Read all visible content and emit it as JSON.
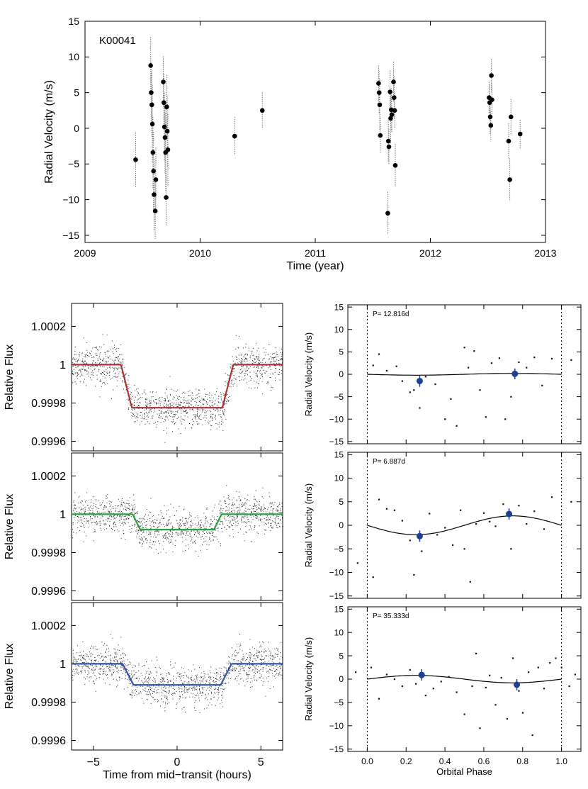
{
  "chart_data": [
    {
      "type": "scatter",
      "id": "rv_time",
      "label": "K00041",
      "xlabel": "Time (year)",
      "ylabel": "Radial Velocity (m/s)",
      "xlim": [
        2009,
        2013
      ],
      "ylim": [
        -16,
        15
      ],
      "xticks": [
        2009,
        2010,
        2011,
        2012,
        2013
      ],
      "xtick_labels": [
        "2009",
        "2010",
        "2011",
        "2012",
        "2013"
      ],
      "yticks": [
        -15,
        -10,
        -5,
        0,
        5,
        10,
        15
      ],
      "ytick_labels": [
        "−15",
        "−10",
        "−5",
        "0",
        "5",
        "10",
        "15"
      ],
      "points": [
        {
          "x": 2009.44,
          "y": -4.4,
          "err": 3.8
        },
        {
          "x": 2009.57,
          "y": 8.8,
          "err": 4.0
        },
        {
          "x": 2009.575,
          "y": 5.0,
          "err": 4.2
        },
        {
          "x": 2009.58,
          "y": 3.3,
          "err": 4.5
        },
        {
          "x": 2009.585,
          "y": 0.6,
          "err": 5.5
        },
        {
          "x": 2009.59,
          "y": -3.4,
          "err": 5.0
        },
        {
          "x": 2009.595,
          "y": -6.0,
          "err": 5.5
        },
        {
          "x": 2009.6,
          "y": -9.3,
          "err": 5.0
        },
        {
          "x": 2009.61,
          "y": -11.6,
          "err": 4.0
        },
        {
          "x": 2009.615,
          "y": -7.2,
          "err": 4.5
        },
        {
          "x": 2009.68,
          "y": 6.5,
          "err": 3.6
        },
        {
          "x": 2009.685,
          "y": 3.6,
          "err": 4.0
        },
        {
          "x": 2009.69,
          "y": 0.2,
          "err": 4.8
        },
        {
          "x": 2009.695,
          "y": -1.3,
          "err": 5.0
        },
        {
          "x": 2009.7,
          "y": -3.4,
          "err": 5.5
        },
        {
          "x": 2009.705,
          "y": -9.7,
          "err": 4.0
        },
        {
          "x": 2009.71,
          "y": 3.0,
          "err": 4.5
        },
        {
          "x": 2009.715,
          "y": -0.4,
          "err": 5.0
        },
        {
          "x": 2009.72,
          "y": -3.0,
          "err": 5.0
        },
        {
          "x": 2010.3,
          "y": -1.1,
          "err": 2.7
        },
        {
          "x": 2010.54,
          "y": 2.5,
          "err": 2.5
        },
        {
          "x": 2011.55,
          "y": 6.3,
          "err": 2.5
        },
        {
          "x": 2011.555,
          "y": 5.0,
          "err": 3.0
        },
        {
          "x": 2011.56,
          "y": 3.3,
          "err": 3.5
        },
        {
          "x": 2011.565,
          "y": -1.0,
          "err": 2.5
        },
        {
          "x": 2011.63,
          "y": -11.9,
          "err": 3.0
        },
        {
          "x": 2011.635,
          "y": -1.8,
          "err": 3.0
        },
        {
          "x": 2011.64,
          "y": -2.6,
          "err": 2.5
        },
        {
          "x": 2011.65,
          "y": 5.1,
          "err": 3.0
        },
        {
          "x": 2011.655,
          "y": 1.4,
          "err": 3.5
        },
        {
          "x": 2011.66,
          "y": 2.6,
          "err": 3.0
        },
        {
          "x": 2011.665,
          "y": 1.9,
          "err": 2.5
        },
        {
          "x": 2011.68,
          "y": 6.5,
          "err": 2.8
        },
        {
          "x": 2011.685,
          "y": 4.3,
          "err": 3.0
        },
        {
          "x": 2011.69,
          "y": 2.5,
          "err": 2.5
        },
        {
          "x": 2011.695,
          "y": -5.2,
          "err": 3.0
        },
        {
          "x": 2012.51,
          "y": 4.3,
          "err": 2.2
        },
        {
          "x": 2012.515,
          "y": 3.6,
          "err": 2.5
        },
        {
          "x": 2012.52,
          "y": 1.6,
          "err": 2.5
        },
        {
          "x": 2012.525,
          "y": 0.4,
          "err": 2.0
        },
        {
          "x": 2012.53,
          "y": 7.4,
          "err": 2.3
        },
        {
          "x": 2012.535,
          "y": 4.0,
          "err": 2.0
        },
        {
          "x": 2012.68,
          "y": -1.8,
          "err": 2.5
        },
        {
          "x": 2012.69,
          "y": -7.2,
          "err": 3.0
        },
        {
          "x": 2012.7,
          "y": 1.6,
          "err": 2.5
        },
        {
          "x": 2012.78,
          "y": -0.8,
          "err": 2.0
        }
      ]
    },
    {
      "type": "scatter",
      "id": "transit_1",
      "ylabel": "Relative Flux",
      "xlim": [
        -6.3,
        6.3
      ],
      "ylim": [
        0.99955,
        1.00032
      ],
      "yticks": [
        0.9996,
        0.9998,
        1.0,
        1.0002
      ],
      "ytick_labels": [
        "0.9996",
        "0.9998",
        "1",
        "1.0002"
      ],
      "model": {
        "depth": 0.000225,
        "t_full": 2.7,
        "t_total": 3.35
      },
      "scatter_sigma": 5e-05,
      "line_color": "#a83236"
    },
    {
      "type": "scatter",
      "id": "transit_2",
      "ylabel": "Relative Flux",
      "xlim": [
        -6.3,
        6.3
      ],
      "ylim": [
        0.99955,
        1.00032
      ],
      "yticks": [
        0.9996,
        0.9998,
        1.0,
        1.0002
      ],
      "ytick_labels": [
        "0.9996",
        "0.9998",
        "1",
        "1.0002"
      ],
      "model": {
        "depth": 8e-05,
        "t_full": 2.2,
        "t_total": 2.65
      },
      "scatter_sigma": 5e-05,
      "line_color": "#2ea043"
    },
    {
      "type": "scatter",
      "id": "transit_3",
      "ylabel": "Relative Flux",
      "xlabel": "Time from mid−transit (hours)",
      "xlim": [
        -6.3,
        6.3
      ],
      "ylim": [
        0.99955,
        1.00032
      ],
      "xticks": [
        -5,
        0,
        5
      ],
      "xtick_labels": [
        "−5",
        "0",
        "5"
      ],
      "yticks": [
        0.9996,
        0.9998,
        1.0,
        1.0002
      ],
      "ytick_labels": [
        "0.9996",
        "0.9998",
        "1",
        "1.0002"
      ],
      "model": {
        "depth": 0.00011,
        "t_full": 2.6,
        "t_total": 3.25
      },
      "scatter_sigma": 5e-05,
      "line_color": "#2f54b0"
    },
    {
      "type": "scatter",
      "id": "phase_1",
      "label": "P= 12.816d",
      "ylabel": "Radial Velocity (m/s)",
      "xlim": [
        -0.1,
        1.1
      ],
      "ylim": [
        -15.5,
        15.5
      ],
      "yticks": [
        -15,
        -10,
        -5,
        0,
        5,
        10,
        15
      ],
      "ytick_labels": [
        "−15",
        "−10",
        "−5",
        "0",
        "5",
        "10",
        "15"
      ],
      "curve": {
        "amplitude": 0.2,
        "phase_max": 0.75
      },
      "binned": [
        {
          "x": 0.27,
          "y": -1.5,
          "err": 1.3
        },
        {
          "x": 0.76,
          "y": 0.1,
          "err": 1.2
        }
      ],
      "points": [
        {
          "x": 0.03,
          "y": 2.0
        },
        {
          "x": 0.06,
          "y": 4.5
        },
        {
          "x": 0.1,
          "y": 0.8
        },
        {
          "x": 0.15,
          "y": 1.8
        },
        {
          "x": 0.18,
          "y": -1.5
        },
        {
          "x": 0.22,
          "y": -4.0
        },
        {
          "x": 0.24,
          "y": -3.5
        },
        {
          "x": 0.27,
          "y": -7.5
        },
        {
          "x": 0.3,
          "y": -0.5
        },
        {
          "x": 0.35,
          "y": -2.2
        },
        {
          "x": 0.4,
          "y": -10.0
        },
        {
          "x": 0.43,
          "y": -5.5
        },
        {
          "x": 0.46,
          "y": -11.5
        },
        {
          "x": 0.5,
          "y": 6.0
        },
        {
          "x": 0.52,
          "y": 1.5
        },
        {
          "x": 0.55,
          "y": 5.2
        },
        {
          "x": 0.58,
          "y": -3.5
        },
        {
          "x": 0.61,
          "y": -9.5
        },
        {
          "x": 0.64,
          "y": 2.5
        },
        {
          "x": 0.68,
          "y": 3.6
        },
        {
          "x": 0.71,
          "y": -10.0
        },
        {
          "x": 0.74,
          "y": -5.0
        },
        {
          "x": 0.78,
          "y": 2.7
        },
        {
          "x": 0.82,
          "y": 1.5
        },
        {
          "x": 0.86,
          "y": 3.8
        },
        {
          "x": 0.9,
          "y": -2.5
        },
        {
          "x": 0.95,
          "y": 3.5
        },
        {
          "x": 1.05,
          "y": 3.2
        }
      ]
    },
    {
      "type": "scatter",
      "id": "phase_2",
      "label": "P= 6.887d",
      "ylabel": "Radial Velocity (m/s)",
      "xlim": [
        -0.1,
        1.1
      ],
      "ylim": [
        -15.5,
        15.5
      ],
      "yticks": [
        -15,
        -10,
        -5,
        0,
        5,
        10,
        15
      ],
      "ytick_labels": [
        "−15",
        "−10",
        "−5",
        "0",
        "5",
        "10",
        "15"
      ],
      "curve": {
        "amplitude": 2.0,
        "phase_max": 0.75
      },
      "binned": [
        {
          "x": 0.27,
          "y": -2.3,
          "err": 1.2
        },
        {
          "x": 0.73,
          "y": 2.4,
          "err": 1.2
        }
      ],
      "points": [
        {
          "x": -0.05,
          "y": -8.0
        },
        {
          "x": 0.03,
          "y": -11.0
        },
        {
          "x": 0.06,
          "y": 5.5
        },
        {
          "x": 0.1,
          "y": 3.5
        },
        {
          "x": 0.14,
          "y": 3.2
        },
        {
          "x": 0.18,
          "y": 1.0
        },
        {
          "x": 0.22,
          "y": -3.2
        },
        {
          "x": 0.24,
          "y": -10.5
        },
        {
          "x": 0.28,
          "y": -5.5
        },
        {
          "x": 0.32,
          "y": 2.5
        },
        {
          "x": 0.36,
          "y": -2.0
        },
        {
          "x": 0.4,
          "y": -0.5
        },
        {
          "x": 0.44,
          "y": -4.2
        },
        {
          "x": 0.48,
          "y": 3.2
        },
        {
          "x": 0.5,
          "y": -5.0
        },
        {
          "x": 0.53,
          "y": -12.0
        },
        {
          "x": 0.56,
          "y": 0.3
        },
        {
          "x": 0.6,
          "y": 2.6
        },
        {
          "x": 0.63,
          "y": 0.8
        },
        {
          "x": 0.66,
          "y": -0.2
        },
        {
          "x": 0.7,
          "y": 4.5
        },
        {
          "x": 0.74,
          "y": -5.0
        },
        {
          "x": 0.78,
          "y": 4.2
        },
        {
          "x": 0.82,
          "y": 0.3
        },
        {
          "x": 0.86,
          "y": 3.0
        },
        {
          "x": 0.91,
          "y": -0.8
        },
        {
          "x": 0.95,
          "y": 6.0
        },
        {
          "x": 1.05,
          "y": 5.0
        }
      ]
    },
    {
      "type": "scatter",
      "id": "phase_3",
      "label": "P= 35.333d",
      "ylabel": "Radial Velocity (m/s)",
      "xlabel": "Orbital Phase",
      "xlim": [
        -0.1,
        1.1
      ],
      "ylim": [
        -15.5,
        15.5
      ],
      "xticks": [
        0.0,
        0.2,
        0.4,
        0.6,
        0.8,
        1.0
      ],
      "xtick_labels": [
        "0.0",
        "0.2",
        "0.4",
        "0.6",
        "0.8",
        "1.0"
      ],
      "yticks": [
        -15,
        -10,
        -5,
        0,
        5,
        10,
        15
      ],
      "ytick_labels": [
        "−15",
        "−10",
        "−5",
        "0",
        "5",
        "10",
        "15"
      ],
      "curve": {
        "amplitude": 0.8,
        "phase_max": 0.25
      },
      "binned": [
        {
          "x": 0.28,
          "y": 0.9,
          "err": 1.2
        },
        {
          "x": 0.77,
          "y": -1.2,
          "err": 1.2
        }
      ],
      "points": [
        {
          "x": -0.06,
          "y": 1.5
        },
        {
          "x": 0.02,
          "y": 2.5
        },
        {
          "x": 0.06,
          "y": -4.2
        },
        {
          "x": 0.1,
          "y": 1.0
        },
        {
          "x": 0.14,
          "y": 0.0
        },
        {
          "x": 0.18,
          "y": -1.5
        },
        {
          "x": 0.22,
          "y": 2.0
        },
        {
          "x": 0.25,
          "y": -1.0
        },
        {
          "x": 0.3,
          "y": -3.5
        },
        {
          "x": 0.34,
          "y": -2.0
        },
        {
          "x": 0.38,
          "y": -0.5
        },
        {
          "x": 0.42,
          "y": 0.5
        },
        {
          "x": 0.46,
          "y": -2.8
        },
        {
          "x": 0.5,
          "y": -7.5
        },
        {
          "x": 0.54,
          "y": -1.5
        },
        {
          "x": 0.56,
          "y": 5.5
        },
        {
          "x": 0.58,
          "y": -10.5
        },
        {
          "x": 0.61,
          "y": -1.8
        },
        {
          "x": 0.63,
          "y": 0.8
        },
        {
          "x": 0.66,
          "y": -5.5
        },
        {
          "x": 0.69,
          "y": 0.3
        },
        {
          "x": 0.72,
          "y": -8.5
        },
        {
          "x": 0.75,
          "y": 4.5
        },
        {
          "x": 0.78,
          "y": -2.5
        },
        {
          "x": 0.8,
          "y": -7.2
        },
        {
          "x": 0.83,
          "y": 1.5
        },
        {
          "x": 0.85,
          "y": -12.0
        },
        {
          "x": 0.88,
          "y": 2.5
        },
        {
          "x": 0.91,
          "y": -2.0
        },
        {
          "x": 0.94,
          "y": 3.5
        },
        {
          "x": 0.97,
          "y": 4.5
        },
        {
          "x": 1.0,
          "y": 2.5
        },
        {
          "x": 1.04,
          "y": -1.5
        },
        {
          "x": 1.07,
          "y": 1.0
        }
      ]
    }
  ]
}
